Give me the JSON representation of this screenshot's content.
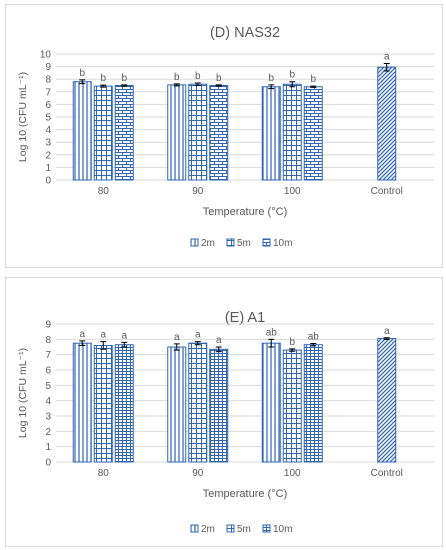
{
  "colors": {
    "bar": "#2f66b3",
    "axis_text": "#595959",
    "grid": "#d9d9d9",
    "letters": "#404040"
  },
  "chart_data": [
    {
      "type": "bar",
      "title": "(D) NAS32",
      "xlabel": "Temperature (°C)",
      "ylabel": "Log 10 (CFU mL⁻¹)",
      "ylim": [
        0,
        10
      ],
      "yticks": [
        "0",
        "1",
        "2",
        "3",
        "4",
        "5",
        "6",
        "7",
        "8",
        "9",
        "10"
      ],
      "categories": [
        "80",
        "90",
        "100",
        "Control"
      ],
      "series": [
        {
          "name": "2m",
          "pattern": "vlines",
          "values": [
            7.8,
            7.55,
            7.4,
            null
          ],
          "errors": [
            0.15,
            0.08,
            0.15,
            null
          ]
        },
        {
          "name": "5m",
          "pattern": "grid",
          "values": [
            7.45,
            7.6,
            7.6,
            null
          ],
          "errors": [
            0.08,
            0.1,
            0.2,
            null
          ]
        },
        {
          "name": "10m",
          "pattern": "brick",
          "values": [
            7.5,
            7.5,
            7.4,
            null
          ],
          "errors": [
            0.05,
            0.05,
            0.05,
            null
          ]
        },
        {
          "name": "",
          "pattern": "diag",
          "values": [
            null,
            null,
            null,
            8.95
          ],
          "errors": [
            null,
            null,
            null,
            0.3
          ]
        }
      ],
      "letters": [
        [
          "b",
          "b",
          "b"
        ],
        [
          "b",
          "b",
          "b"
        ],
        [
          "b",
          "b",
          "b"
        ],
        [
          "a"
        ]
      ],
      "grid": true,
      "legend": "bottom"
    },
    {
      "type": "bar",
      "title": "(E) A1",
      "xlabel": "Temperature (°C)",
      "ylabel": "Log 10 (CFU mL⁻¹)",
      "ylim": [
        0,
        9
      ],
      "yticks": [
        "0",
        "1",
        "2",
        "3",
        "4",
        "5",
        "6",
        "7",
        "8",
        "9"
      ],
      "categories": [
        "80",
        "90",
        "100",
        "Control"
      ],
      "series": [
        {
          "name": "2m",
          "pattern": "vlines",
          "values": [
            7.75,
            7.5,
            7.75,
            null
          ],
          "errors": [
            0.15,
            0.2,
            0.25,
            null
          ]
        },
        {
          "name": "5m",
          "pattern": "grid",
          "values": [
            7.6,
            7.75,
            7.3,
            null
          ],
          "errors": [
            0.25,
            0.1,
            0.08,
            null
          ]
        },
        {
          "name": "10m",
          "pattern": "hgrid",
          "values": [
            7.65,
            7.35,
            7.65,
            null
          ],
          "errors": [
            0.15,
            0.15,
            0.08,
            null
          ]
        },
        {
          "name": "",
          "pattern": "diag",
          "values": [
            null,
            null,
            null,
            8.05
          ],
          "errors": [
            null,
            null,
            null,
            0.05
          ]
        }
      ],
      "letters": [
        [
          "a",
          "a",
          "a"
        ],
        [
          "a",
          "a",
          "a"
        ],
        [
          "ab",
          "b",
          "ab"
        ],
        [
          "a"
        ]
      ],
      "grid": true,
      "legend": "bottom"
    }
  ]
}
